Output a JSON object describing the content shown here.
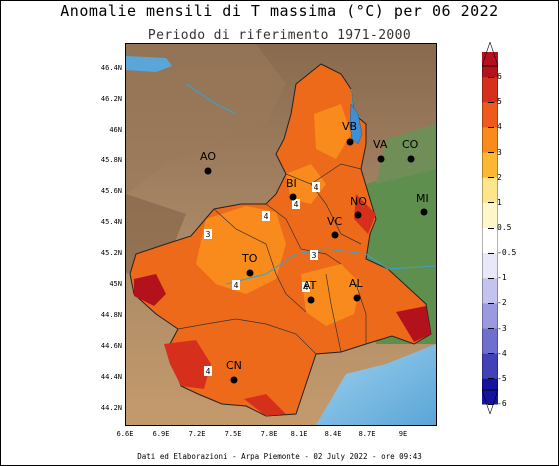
{
  "title": "Anomalie mensili di T massima (°C) per 06 2022",
  "subtitle": "Periodo di riferimento 1971-2000",
  "credits": "Dati ed Elaborazioni - Arpa Piemonte - 02 July 2022 - ore 09:43",
  "y_ticks": [
    "46.4N",
    "46.2N",
    "46N",
    "45.8N",
    "45.6N",
    "45.4N",
    "45.2N",
    "45N",
    "44.8N",
    "44.6N",
    "44.4N",
    "44.2N"
  ],
  "x_ticks": [
    "6.6E",
    "6.9E",
    "7.2E",
    "7.5E",
    "7.8E",
    "8.1E",
    "8.4E",
    "8.7E",
    "9E"
  ],
  "colorbar": {
    "labels": [
      "6",
      "5",
      "4",
      "3",
      "2",
      "1",
      "0.5",
      "-0.5",
      "-1",
      "-2",
      "-3",
      "-4",
      "-5",
      "-6"
    ],
    "colors": [
      "#b3111b",
      "#d6301d",
      "#ee5a1b",
      "#f98b1c",
      "#fdb833",
      "#fde68a",
      "#fff6c9",
      "#ffffff",
      "#e8e8f8",
      "#c3c3ee",
      "#9a9ae0",
      "#6f6fd0",
      "#4141b8",
      "#1414a0"
    ]
  },
  "cities": [
    {
      "label": "VB"
    },
    {
      "label": "VA"
    },
    {
      "label": "CO"
    },
    {
      "label": "AO"
    },
    {
      "label": "BI"
    },
    {
      "label": "NO"
    },
    {
      "label": "MI"
    },
    {
      "label": "VC"
    },
    {
      "label": "TO"
    },
    {
      "label": "AT"
    },
    {
      "label": "AL"
    },
    {
      "label": "CN"
    }
  ],
  "contour_labels": [
    "4",
    "4",
    "4",
    "3",
    "4",
    "4",
    "3",
    "4"
  ]
}
